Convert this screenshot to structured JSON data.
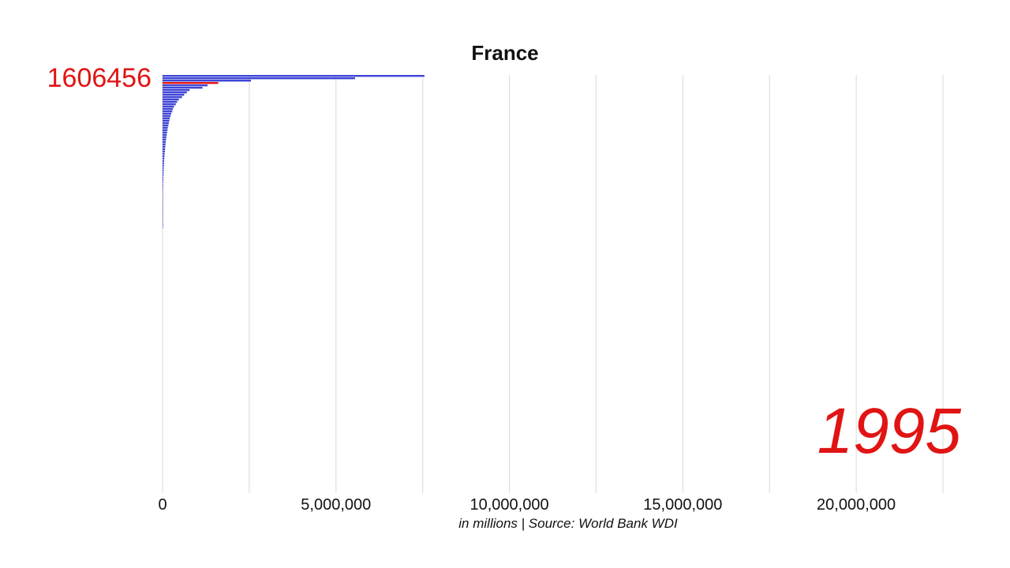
{
  "chart_data": {
    "type": "bar",
    "orientation": "horizontal",
    "title": "France",
    "highlight": {
      "category": "France",
      "value": "1606456"
    },
    "year": "1995",
    "caption": "in millions | Source: World Bank WDI",
    "xlim": [
      0,
      22500000
    ],
    "x_ticks": [
      0,
      5000000,
      10000000,
      15000000,
      20000000
    ],
    "x_tick_labels": [
      "0",
      "5,000,000",
      "10,000,000",
      "15,000,000",
      "20,000,000"
    ],
    "gridlines": [
      2500000,
      5000000,
      7500000,
      10000000,
      12500000,
      15000000,
      17500000,
      20000000,
      22500000
    ],
    "grid": true,
    "colors": {
      "bar": "#3f46d6",
      "highlight": "#e11414",
      "grid": "#d9d9d9"
    },
    "highlight_index": 3,
    "values": [
      7550000,
      5550000,
      2550000,
      1606456,
      1300000,
      1150000,
      780000,
      700000,
      620000,
      560000,
      470000,
      420000,
      380000,
      330000,
      300000,
      280000,
      250000,
      230000,
      210000,
      195000,
      180000,
      165000,
      150000,
      140000,
      130000,
      120000,
      110000,
      100000,
      92000,
      85000,
      78000,
      72000,
      66000,
      60000,
      55000,
      50000,
      46000,
      42000,
      38000,
      35000,
      32000,
      29000,
      26000,
      24000,
      22000,
      20000,
      18000,
      16500,
      15000,
      13500,
      12000,
      11000,
      10000,
      9000,
      8000,
      7000,
      6200,
      5500,
      4800,
      4200,
      3600,
      3100,
      2600,
      2200,
      1800
    ]
  }
}
